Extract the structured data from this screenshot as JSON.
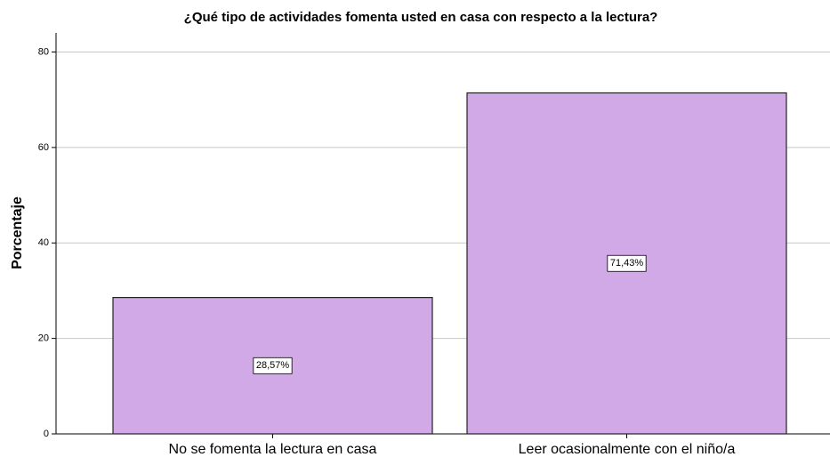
{
  "chart_data": {
    "type": "bar",
    "title": "¿Qué tipo de actividades fomenta usted en casa con respecto a la lectura?",
    "y_label": "Porcentaje",
    "categories": [
      "No se fomenta la lectura en casa",
      "Leer ocasionalmente con el niño/a"
    ],
    "values": [
      28.57,
      71.43
    ],
    "value_labels": [
      "28,57%",
      "71,43%"
    ],
    "color": "#d0a9e6",
    "ylim": [
      0,
      84
    ],
    "yticks": [
      0,
      20,
      40,
      60,
      80
    ],
    "grid": true
  }
}
